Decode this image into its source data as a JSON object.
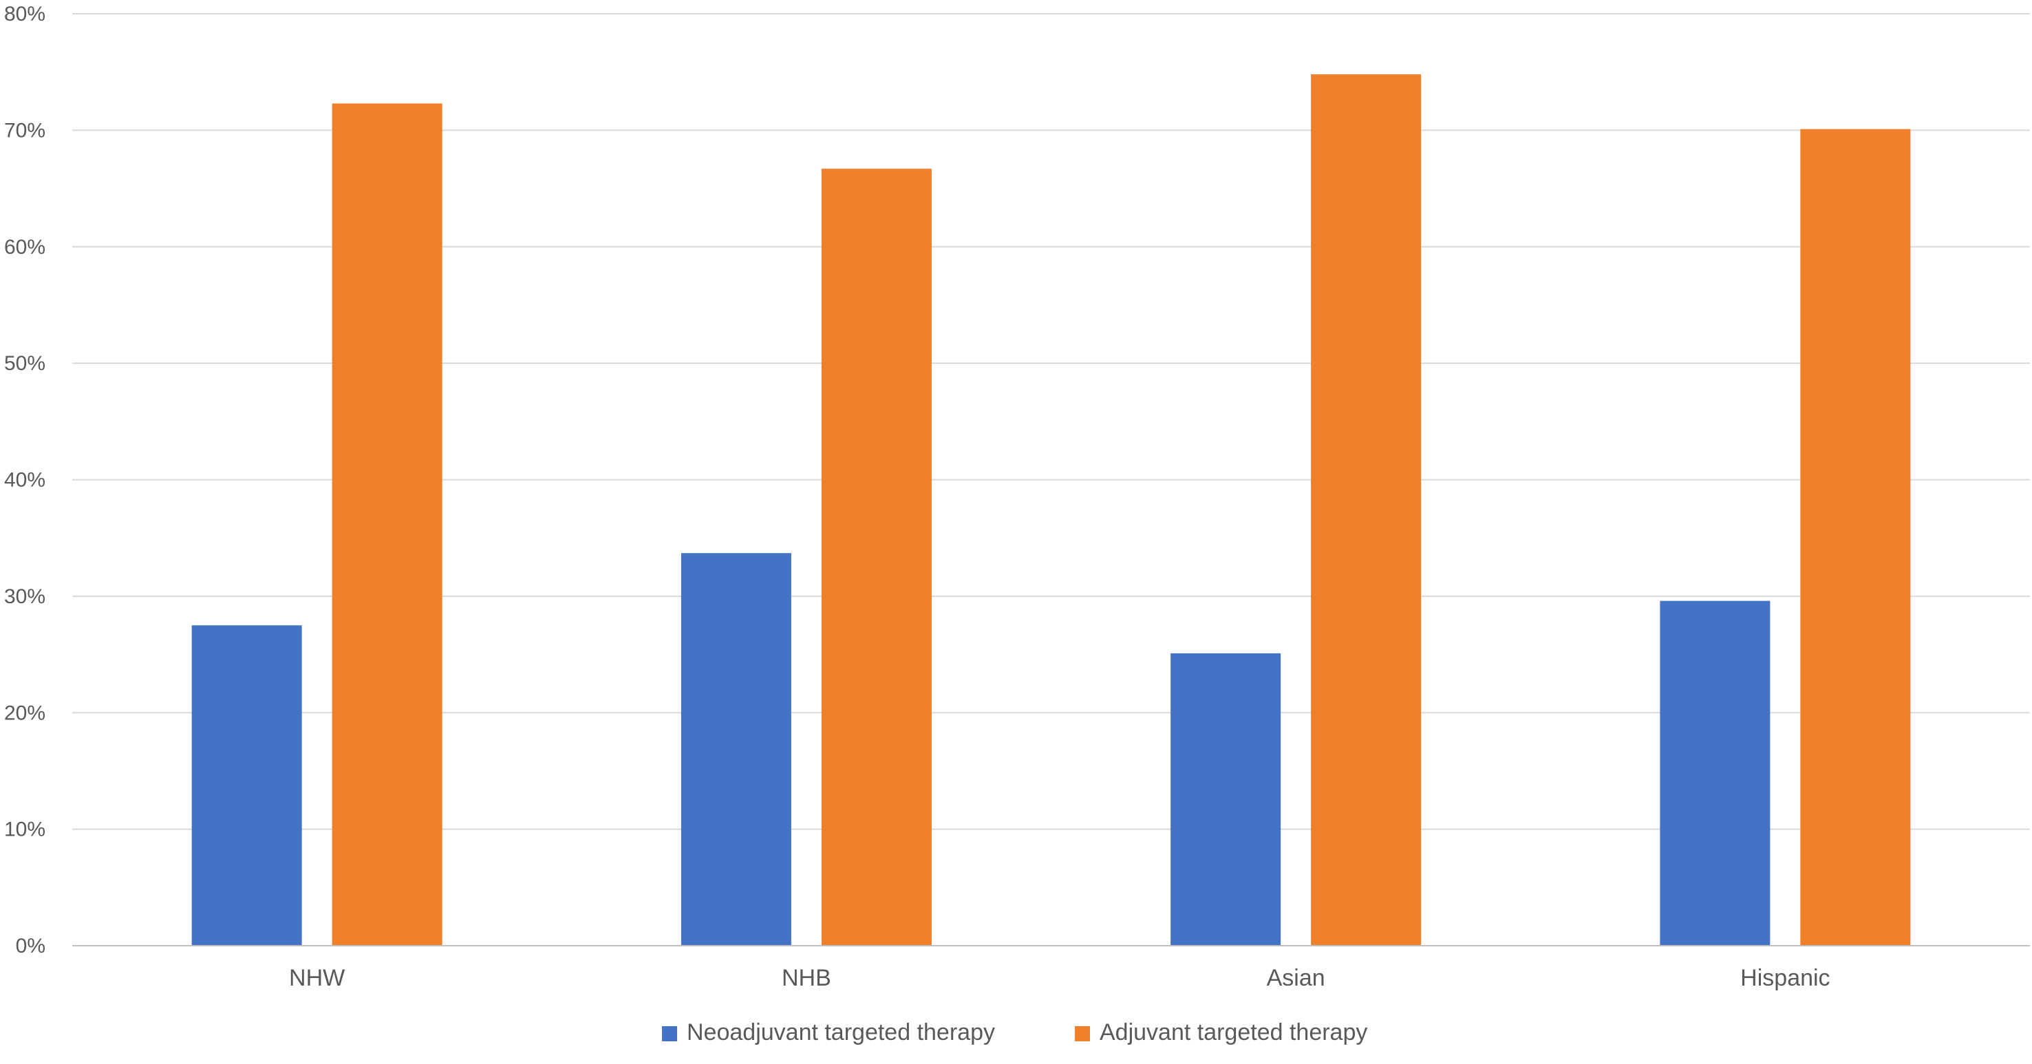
{
  "chart_data": {
    "type": "bar",
    "categories": [
      "NHW",
      "NHB",
      "Asian",
      "Hispanic"
    ],
    "series": [
      {
        "name": "Neoadjuvant targeted therapy",
        "color": "#4472C4",
        "values": [
          27.5,
          33.7,
          25.1,
          29.6
        ]
      },
      {
        "name": "Adjuvant targeted therapy",
        "color": "#F07F2A",
        "values": [
          72.3,
          66.7,
          74.8,
          70.1
        ]
      }
    ],
    "yticks": [
      "0%",
      "10%",
      "20%",
      "30%",
      "40%",
      "50%",
      "60%",
      "70%",
      "80%"
    ],
    "ylim": [
      0,
      80
    ],
    "grid": true,
    "legend_position": "bottom",
    "title": "",
    "xlabel": "",
    "ylabel": ""
  }
}
